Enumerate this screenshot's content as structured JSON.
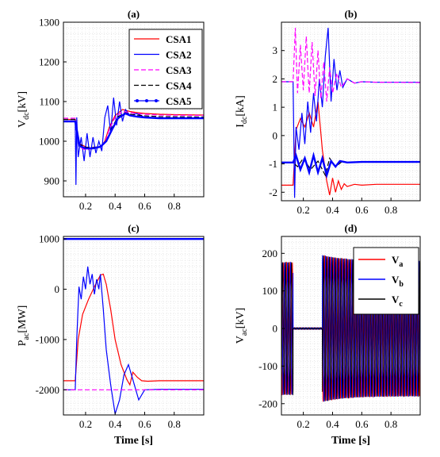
{
  "chart_data": [
    {
      "id": "a",
      "title": "(a)",
      "type": "line",
      "ylabel_main": "V",
      "ylabel_sub": "dc",
      "ylabel_unit": "[kV]",
      "xlabel": "",
      "xlim": [
        0.05,
        1.0
      ],
      "ylim": [
        860,
        1300
      ],
      "xticks": [
        0.2,
        0.4,
        0.6,
        0.8
      ],
      "xtick_labels": [
        "0.2",
        "0.4",
        "0.6",
        "0.8"
      ],
      "yticks": [
        900,
        1000,
        1100,
        1200,
        1300
      ],
      "ytick_labels": [
        "900",
        "1000",
        "1100",
        "1200",
        "1300"
      ],
      "grid": true,
      "legend_position": "top-right",
      "series": [
        {
          "name": "CSA1",
          "color": "#ff0000",
          "dash": "solid",
          "x": [
            0.05,
            0.13,
            0.15,
            0.18,
            0.22,
            0.26,
            0.3,
            0.33,
            0.36,
            0.4,
            0.45,
            0.5,
            0.55,
            0.6,
            0.7,
            0.8,
            1.0
          ],
          "y": [
            1055,
            1055,
            995,
            990,
            982,
            985,
            985,
            1000,
            1035,
            1065,
            1080,
            1075,
            1072,
            1070,
            1068,
            1067,
            1066
          ]
        },
        {
          "name": "CSA2",
          "color": "#0000ff",
          "dash": "solid",
          "x": [
            0.05,
            0.13,
            0.135,
            0.14,
            0.15,
            0.17,
            0.19,
            0.21,
            0.23,
            0.25,
            0.27,
            0.29,
            0.31,
            0.33,
            0.35,
            0.37,
            0.39,
            0.41,
            0.43,
            0.45,
            0.47,
            0.5,
            0.55,
            0.6,
            0.7,
            1.0
          ],
          "y": [
            1050,
            1050,
            890,
            1060,
            960,
            1010,
            950,
            1020,
            960,
            1010,
            970,
            1000,
            975,
            1060,
            1090,
            1020,
            1110,
            1040,
            1100,
            1050,
            1080,
            1065,
            1070,
            1060,
            1058,
            1058
          ]
        },
        {
          "name": "CSA3",
          "color": "#ff00ff",
          "dash": "dashed",
          "x": [
            0.05,
            0.13,
            0.16,
            0.2,
            0.25,
            0.3,
            0.33,
            0.36,
            0.4,
            0.45,
            0.5,
            0.55,
            0.6,
            0.7,
            1.0
          ],
          "y": [
            1058,
            1058,
            985,
            978,
            982,
            985,
            995,
            1030,
            1060,
            1075,
            1072,
            1070,
            1068,
            1066,
            1065
          ]
        },
        {
          "name": "CSA4",
          "color": "#000000",
          "dash": "dashed",
          "x": [
            0.05,
            0.13,
            0.16,
            0.2,
            0.25,
            0.3,
            0.34,
            0.38,
            0.42,
            0.47,
            0.5,
            0.55,
            0.6,
            0.7,
            1.0
          ],
          "y": [
            1055,
            1055,
            992,
            985,
            984,
            987,
            1000,
            1035,
            1062,
            1072,
            1068,
            1066,
            1064,
            1062,
            1061
          ]
        },
        {
          "name": "CSA5",
          "color": "#0000ff",
          "dash": "solid-marker",
          "x": [
            0.05,
            0.13,
            0.16,
            0.2,
            0.25,
            0.3,
            0.34,
            0.38,
            0.42,
            0.47,
            0.5,
            0.55,
            0.6,
            0.7,
            1.0
          ],
          "y": [
            1050,
            1050,
            988,
            982,
            982,
            986,
            1000,
            1030,
            1058,
            1070,
            1065,
            1062,
            1060,
            1058,
            1058
          ]
        }
      ]
    },
    {
      "id": "b",
      "title": "(b)",
      "type": "line",
      "ylabel_main": "I",
      "ylabel_sub": "dc",
      "ylabel_unit": "[kA]",
      "xlabel": "",
      "xlim": [
        0.05,
        1.0
      ],
      "ylim": [
        -2.3,
        4.0
      ],
      "xticks": [
        0.2,
        0.4,
        0.6,
        0.8
      ],
      "xtick_labels": [
        "0.2",
        "0.4",
        "0.6",
        "0.8"
      ],
      "yticks": [
        -2,
        -1,
        0,
        1,
        2,
        3
      ],
      "ytick_labels": [
        "-2",
        "-1",
        "0",
        "1",
        "2",
        "3"
      ],
      "grid": true,
      "series": [
        {
          "name": "CSA1",
          "color": "#ff0000",
          "dash": "solid",
          "x": [
            0.05,
            0.13,
            0.15,
            0.18,
            0.21,
            0.24,
            0.27,
            0.3,
            0.33,
            0.36,
            0.38,
            0.4,
            0.42,
            0.44,
            0.46,
            0.48,
            0.5,
            0.55,
            0.6,
            0.7,
            1.0
          ],
          "y": [
            -1.75,
            -1.75,
            0.2,
            0.6,
            0.3,
            0.8,
            0.3,
            1.2,
            -0.5,
            -1.6,
            -2.1,
            -1.5,
            -2.0,
            -1.6,
            -1.9,
            -1.7,
            -1.8,
            -1.72,
            -1.75,
            -1.72,
            -1.72
          ]
        },
        {
          "name": "CSA2",
          "color": "#0000ff",
          "dash": "solid",
          "x": [
            0.05,
            0.13,
            0.14,
            0.15,
            0.17,
            0.19,
            0.21,
            0.23,
            0.25,
            0.27,
            0.29,
            0.31,
            0.33,
            0.35,
            0.37,
            0.39,
            0.41,
            0.43,
            0.45,
            0.47,
            0.5,
            0.55,
            0.6,
            0.7,
            1.0
          ],
          "y": [
            1.9,
            1.9,
            -2.2,
            0.3,
            -0.5,
            0.8,
            -0.3,
            1.2,
            0.1,
            1.5,
            0.5,
            2.0,
            1.0,
            2.8,
            3.8,
            1.2,
            2.7,
            1.6,
            2.3,
            1.7,
            2.0,
            1.85,
            1.9,
            1.88,
            1.88
          ]
        },
        {
          "name": "CSA3",
          "color": "#ff00ff",
          "dash": "dashed",
          "x": [
            0.05,
            0.13,
            0.145,
            0.16,
            0.18,
            0.2,
            0.22,
            0.24,
            0.26,
            0.28,
            0.3,
            0.32,
            0.34,
            0.36,
            0.38,
            0.4,
            0.43,
            0.46,
            0.5,
            0.55,
            0.6,
            0.7,
            1.0
          ],
          "y": [
            1.9,
            1.9,
            3.8,
            1.5,
            3.2,
            1.6,
            3.5,
            1.5,
            3.3,
            1.4,
            3.0,
            1.3,
            2.6,
            1.2,
            2.4,
            1.5,
            2.2,
            1.7,
            2.0,
            1.85,
            1.9,
            1.88,
            1.87
          ]
        },
        {
          "name": "CSA4",
          "color": "#000000",
          "dash": "dashed",
          "x": [
            0.05,
            0.13,
            0.16,
            0.2,
            0.25,
            0.3,
            0.35,
            0.38,
            0.42,
            0.47,
            0.5,
            0.6,
            1.0
          ],
          "y": [
            -0.95,
            -0.95,
            -1.1,
            -0.8,
            -1.2,
            -0.9,
            -1.4,
            -0.8,
            -1.1,
            -0.9,
            -0.95,
            -0.93,
            -0.93
          ]
        },
        {
          "name": "CSA5",
          "color": "#0000ff",
          "dash": "solid-marker",
          "x": [
            0.05,
            0.13,
            0.15,
            0.18,
            0.21,
            0.24,
            0.27,
            0.3,
            0.33,
            0.36,
            0.39,
            0.42,
            0.45,
            0.5,
            0.6,
            1.0
          ],
          "y": [
            -0.95,
            -0.95,
            -0.7,
            -1.2,
            -0.8,
            -1.3,
            -0.7,
            -1.3,
            -0.8,
            -1.4,
            -0.9,
            -1.1,
            -0.9,
            -0.95,
            -0.93,
            -0.93
          ]
        }
      ]
    },
    {
      "id": "c",
      "title": "(c)",
      "type": "line",
      "ylabel_main": "P",
      "ylabel_sub": "ac",
      "ylabel_unit": "[MW]",
      "xlabel": "Time [s]",
      "xlim": [
        0.05,
        1.0
      ],
      "ylim": [
        -2500,
        1050
      ],
      "xticks": [
        0.2,
        0.4,
        0.6,
        0.8
      ],
      "xtick_labels": [
        "0.2",
        "0.4",
        "0.6",
        "0.8"
      ],
      "yticks": [
        -2000,
        -1000,
        0,
        1000
      ],
      "ytick_labels": [
        "-2000",
        "-1000",
        "0",
        "1000"
      ],
      "grid": true,
      "series": [
        {
          "name": "CSA1",
          "color": "#ff0000",
          "dash": "solid",
          "x": [
            0.05,
            0.13,
            0.15,
            0.18,
            0.22,
            0.26,
            0.3,
            0.32,
            0.34,
            0.37,
            0.4,
            0.44,
            0.48,
            0.5,
            0.52,
            0.55,
            0.58,
            0.62,
            0.7,
            0.8,
            1.0
          ],
          "y": [
            -1820,
            -1820,
            -1000,
            -500,
            -200,
            50,
            280,
            300,
            100,
            -400,
            -1000,
            -1500,
            -1800,
            -1900,
            -1650,
            -1750,
            -1820,
            -1830,
            -1820,
            -1820,
            -1820
          ]
        },
        {
          "name": "CSA2",
          "color": "#0000ff",
          "dash": "solid",
          "x": [
            0.05,
            0.13,
            0.14,
            0.155,
            0.17,
            0.185,
            0.2,
            0.215,
            0.23,
            0.245,
            0.26,
            0.275,
            0.29,
            0.3,
            0.32,
            0.34,
            0.37,
            0.4,
            0.43,
            0.46,
            0.49,
            0.52,
            0.56,
            0.6,
            0.7,
            1.0
          ],
          "y": [
            -2000,
            -2000,
            -1000,
            50,
            -200,
            250,
            0,
            450,
            100,
            300,
            -100,
            200,
            0,
            300,
            -400,
            -1200,
            -1900,
            -2480,
            -2200,
            -1700,
            -1500,
            -1800,
            -2200,
            -2000,
            -1990,
            -1990
          ]
        },
        {
          "name": "CSA3",
          "color": "#ff00ff",
          "dash": "dashed",
          "x": [
            0.05,
            1.0
          ],
          "y": [
            -2000,
            -2000
          ]
        },
        {
          "name": "CSA4",
          "color": "#000000",
          "dash": "dashed",
          "x": [
            0.05,
            1.0
          ],
          "y": [
            1000,
            1000
          ]
        },
        {
          "name": "CSA5",
          "color": "#0000ff",
          "dash": "solid-marker",
          "x": [
            0.05,
            1.0
          ],
          "y": [
            1000,
            1000
          ]
        }
      ]
    },
    {
      "id": "d",
      "title": "(d)",
      "type": "line",
      "ylabel_main": "V",
      "ylabel_sub": "ac",
      "ylabel_unit": "[kV]",
      "xlabel": "Time [s]",
      "xlim": [
        0.05,
        1.0
      ],
      "ylim": [
        -230,
        245
      ],
      "xticks": [
        0.2,
        0.4,
        0.6,
        0.8
      ],
      "xtick_labels": [
        "0.2",
        "0.4",
        "0.6",
        "0.8"
      ],
      "yticks": [
        -200,
        -100,
        0,
        100,
        200
      ],
      "ytick_labels": [
        "-200",
        "-100",
        "0",
        "100",
        "200"
      ],
      "grid": true,
      "legend_position": "top-right",
      "wave": {
        "frequency_hz": 50,
        "pre_fault_amplitude_kv": 176,
        "fault_start_s": 0.13,
        "fault_end_s": 0.33,
        "fault_level_kv": 2,
        "post_fault_peak_kv": 195,
        "post_fault_amplitude_kv": 180
      },
      "series": [
        {
          "name": "V",
          "sub": "a",
          "color": "#ff0000",
          "phase_deg": 0
        },
        {
          "name": "V",
          "sub": "b",
          "color": "#0000ff",
          "phase_deg": -120
        },
        {
          "name": "V",
          "sub": "c",
          "color": "#000000",
          "phase_deg": 120
        }
      ]
    }
  ]
}
